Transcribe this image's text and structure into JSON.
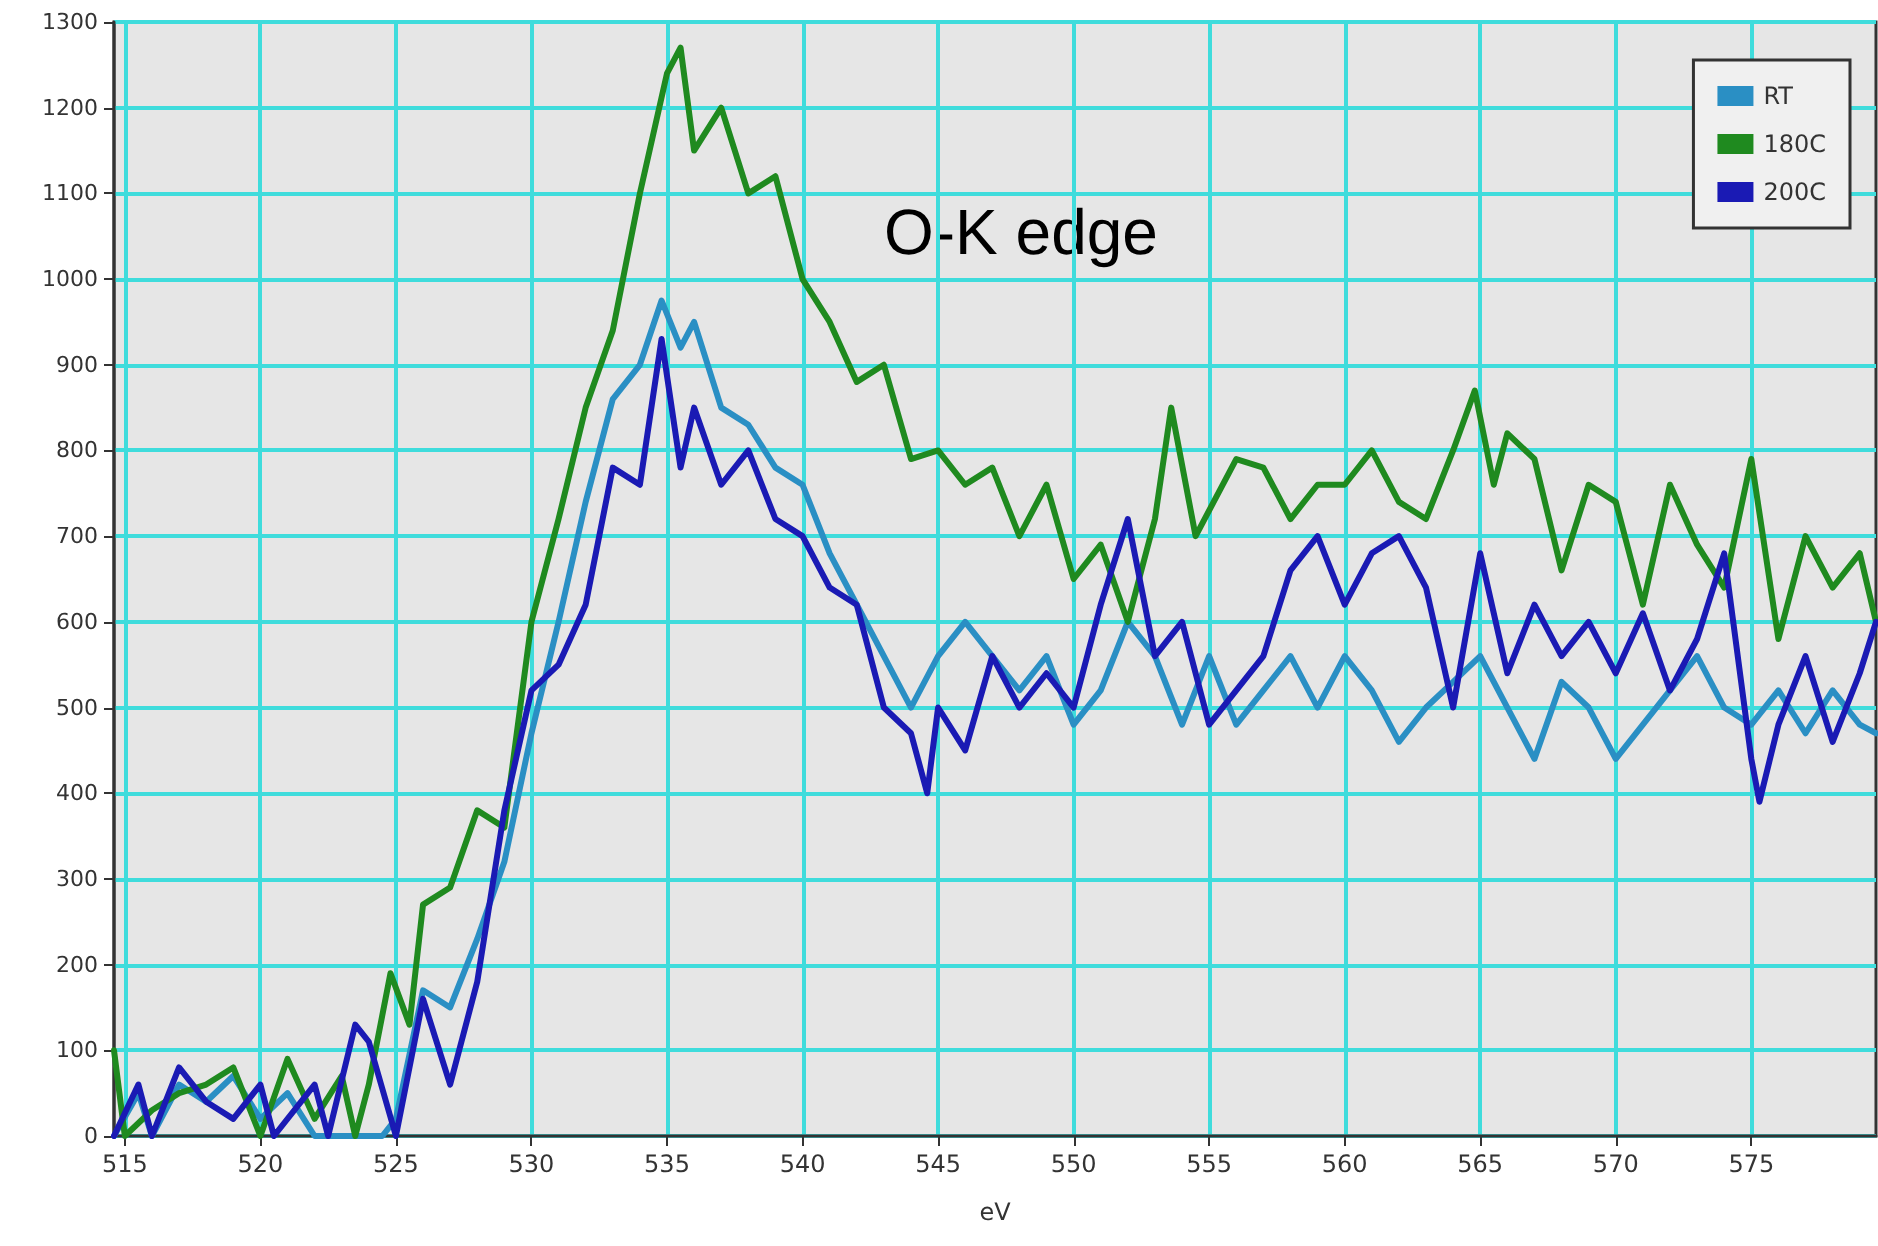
{
  "chart_data": {
    "type": "line",
    "xlabel": "eV",
    "annotations": [
      "O-K edge"
    ],
    "xlim": [
      514.6,
      579.6
    ],
    "ylim": [
      0,
      1300
    ],
    "xticks": [
      515,
      520,
      525,
      530,
      535,
      540,
      545,
      550,
      555,
      560,
      565,
      570,
      575
    ],
    "yticks": [
      0,
      100,
      200,
      300,
      400,
      500,
      600,
      700,
      800,
      900,
      1000,
      1100,
      1200,
      1300
    ],
    "grid": true,
    "legend": "top right",
    "marker": "none",
    "line_style": "solid",
    "series": [
      {
        "name": "RT",
        "color": "#2a8fc4",
        "x": [
          514.6,
          515.5,
          516,
          517,
          518,
          519,
          520,
          521,
          522,
          523,
          524,
          524.5,
          525,
          526,
          527,
          528,
          529,
          530,
          531,
          532,
          533,
          534,
          534.8,
          535.5,
          536,
          537,
          538,
          539,
          540,
          541,
          542,
          543,
          544,
          545,
          546,
          547,
          548,
          549,
          550,
          551,
          552,
          553,
          554,
          555,
          556,
          557,
          558,
          559,
          560,
          561,
          562,
          563,
          564,
          565,
          566,
          567,
          568,
          569,
          570,
          571,
          572,
          573,
          574,
          575,
          576,
          577,
          578,
          579,
          579.6
        ],
        "values": [
          0,
          50,
          0,
          60,
          40,
          70,
          20,
          50,
          0,
          0,
          0,
          0,
          20,
          170,
          150,
          230,
          320,
          470,
          600,
          740,
          860,
          900,
          975,
          920,
          950,
          850,
          830,
          780,
          760,
          680,
          620,
          560,
          500,
          560,
          600,
          560,
          520,
          560,
          480,
          520,
          600,
          560,
          480,
          560,
          480,
          520,
          560,
          500,
          560,
          520,
          460,
          500,
          530,
          560,
          500,
          440,
          530,
          500,
          440,
          480,
          520,
          560,
          500,
          480,
          520,
          470,
          520,
          480,
          470
        ]
      },
      {
        "name": "180C",
        "color": "#1f8a1f",
        "x": [
          514.6,
          515,
          516,
          517,
          518,
          519,
          520,
          521,
          522,
          523,
          523.5,
          524,
          524.8,
          525.5,
          526,
          527,
          528,
          529,
          530,
          531,
          532,
          533,
          534,
          535,
          535.5,
          536,
          537,
          538,
          539,
          540,
          541,
          542,
          543,
          544,
          545,
          546,
          547,
          548,
          549,
          550,
          551,
          552,
          553,
          553.6,
          554.5,
          556,
          557,
          558,
          559,
          560,
          561,
          562,
          563,
          564,
          564.8,
          565.5,
          566,
          567,
          568,
          569,
          570,
          571,
          572,
          573,
          574,
          575,
          576,
          577,
          578,
          579,
          579.6
        ],
        "values": [
          100,
          0,
          30,
          50,
          60,
          80,
          0,
          90,
          20,
          70,
          0,
          60,
          190,
          130,
          270,
          290,
          380,
          360,
          600,
          720,
          850,
          940,
          1100,
          1240,
          1270,
          1150,
          1200,
          1100,
          1120,
          1000,
          950,
          880,
          900,
          790,
          800,
          760,
          780,
          700,
          760,
          650,
          690,
          600,
          720,
          850,
          700,
          790,
          780,
          720,
          760,
          760,
          800,
          740,
          720,
          800,
          870,
          760,
          820,
          790,
          660,
          760,
          740,
          620,
          760,
          690,
          640,
          790,
          580,
          700,
          640,
          680,
          600
        ]
      },
      {
        "name": "200C",
        "color": "#1a1ab4",
        "x": [
          514.6,
          515.5,
          516,
          517,
          518,
          519,
          520,
          520.5,
          522,
          522.5,
          523.5,
          524,
          525,
          526,
          527,
          528,
          529,
          530,
          531,
          532,
          533,
          534,
          534.8,
          535.5,
          536,
          537,
          538,
          539,
          540,
          541,
          542,
          543,
          544,
          544.6,
          545,
          546,
          547,
          548,
          549,
          550,
          551,
          552,
          553,
          554,
          555,
          556,
          557,
          558,
          559,
          560,
          561,
          562,
          563,
          564,
          565,
          566,
          567,
          568,
          569,
          570,
          571,
          572,
          573,
          574,
          575,
          575.3,
          576,
          577,
          578,
          579,
          579.6
        ],
        "values": [
          0,
          60,
          0,
          80,
          40,
          20,
          60,
          0,
          60,
          0,
          130,
          110,
          0,
          160,
          60,
          180,
          380,
          520,
          550,
          620,
          780,
          760,
          930,
          780,
          850,
          760,
          800,
          720,
          700,
          640,
          620,
          500,
          470,
          400,
          500,
          450,
          560,
          500,
          540,
          500,
          620,
          720,
          560,
          600,
          480,
          520,
          560,
          660,
          700,
          620,
          680,
          700,
          640,
          500,
          680,
          540,
          620,
          560,
          600,
          540,
          610,
          520,
          580,
          680,
          440,
          390,
          480,
          560,
          460,
          540,
          600
        ]
      }
    ]
  }
}
